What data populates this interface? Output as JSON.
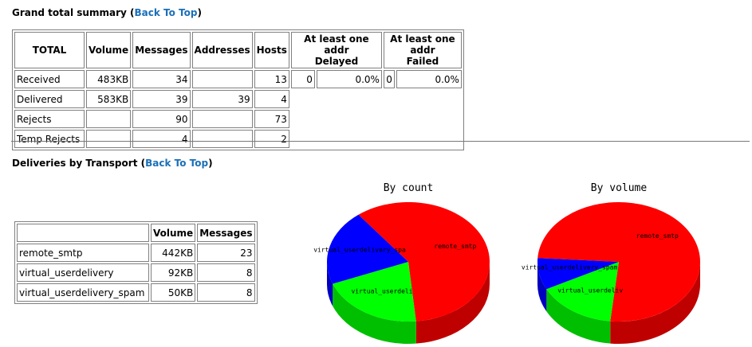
{
  "grand": {
    "title": "Grand total summary",
    "back_link": "Back To Top",
    "headers": [
      "TOTAL",
      "Volume",
      "Messages",
      "Addresses",
      "Hosts",
      "At least one addr Delayed",
      "At least one addr Failed"
    ],
    "header_lines": {
      "total": "TOTAL",
      "volume": "Volume",
      "messages": "Messages",
      "addresses": "Addresses",
      "hosts": "Hosts",
      "delayed_1": "At least one addr",
      "delayed_2": "Delayed",
      "failed_1": "At least one addr",
      "failed_2": "Failed"
    },
    "rows": [
      {
        "label": "Received",
        "volume": "483KB",
        "messages": "34",
        "addresses": "",
        "hosts": "13",
        "delayed_n": "0",
        "delayed_pct": "0.0%",
        "failed_n": "0",
        "failed_pct": "0.0%"
      },
      {
        "label": "Delivered",
        "volume": "583KB",
        "messages": "39",
        "addresses": "39",
        "hosts": "4"
      },
      {
        "label": "Rejects",
        "volume": "",
        "messages": "90",
        "addresses": "",
        "hosts": "73"
      },
      {
        "label": "Temp Rejects",
        "volume": "",
        "messages": "4",
        "addresses": "",
        "hosts": "2"
      }
    ]
  },
  "transport": {
    "title": "Deliveries by Transport",
    "back_link": "Back To Top",
    "headers": {
      "name": "",
      "volume": "Volume",
      "messages": "Messages"
    },
    "rows": [
      {
        "name": "remote_smtp",
        "volume": "442KB",
        "messages": "23"
      },
      {
        "name": "virtual_userdelivery",
        "volume": "92KB",
        "messages": "8"
      },
      {
        "name": "virtual_userdelivery_spam",
        "volume": "50KB",
        "messages": "8"
      }
    ]
  },
  "chart_data": [
    {
      "type": "pie",
      "title": "By count",
      "labels": [
        "remote_smtp",
        "virtual_userdeli",
        "virtual_userdelivery_spa"
      ],
      "values": [
        23,
        8,
        8
      ],
      "colors": [
        "#ff0000",
        "#00ff00",
        "#0000ff"
      ]
    },
    {
      "type": "pie",
      "title": "By volume",
      "labels": [
        "remote_smtp",
        "virtual_userdeliv",
        "virtual_userdelivery_spam"
      ],
      "values": [
        442,
        92,
        50
      ],
      "colors": [
        "#ff0000",
        "#00ff00",
        "#0000ff"
      ]
    }
  ]
}
